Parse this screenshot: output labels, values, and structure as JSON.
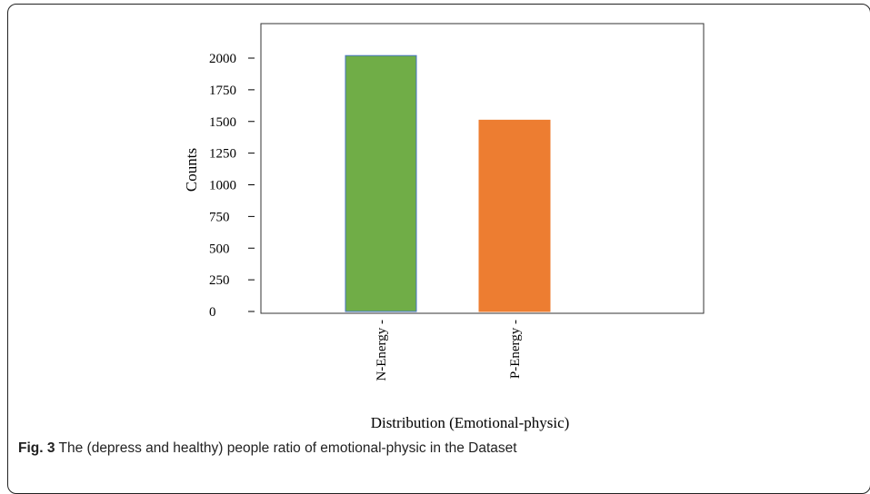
{
  "chart_data": {
    "type": "bar",
    "categories": [
      "N-Energy",
      "P-Energy"
    ],
    "values": [
      2020,
      1510
    ],
    "colors": [
      "#70ad47",
      "#ed7d31"
    ],
    "edge_colors": [
      "#4472c4",
      "#ed7d31"
    ],
    "yticks": [
      0,
      250,
      500,
      750,
      1000,
      1250,
      1500,
      1750,
      2000
    ],
    "ylim": [
      0,
      2000
    ],
    "ylabel": "Counts",
    "xlabel": "Distribution (Emotional-physic)",
    "title": ""
  },
  "caption": {
    "label": "Fig. 3",
    "text": "The (depress and healthy) people ratio of emotional-physic in the Dataset"
  }
}
